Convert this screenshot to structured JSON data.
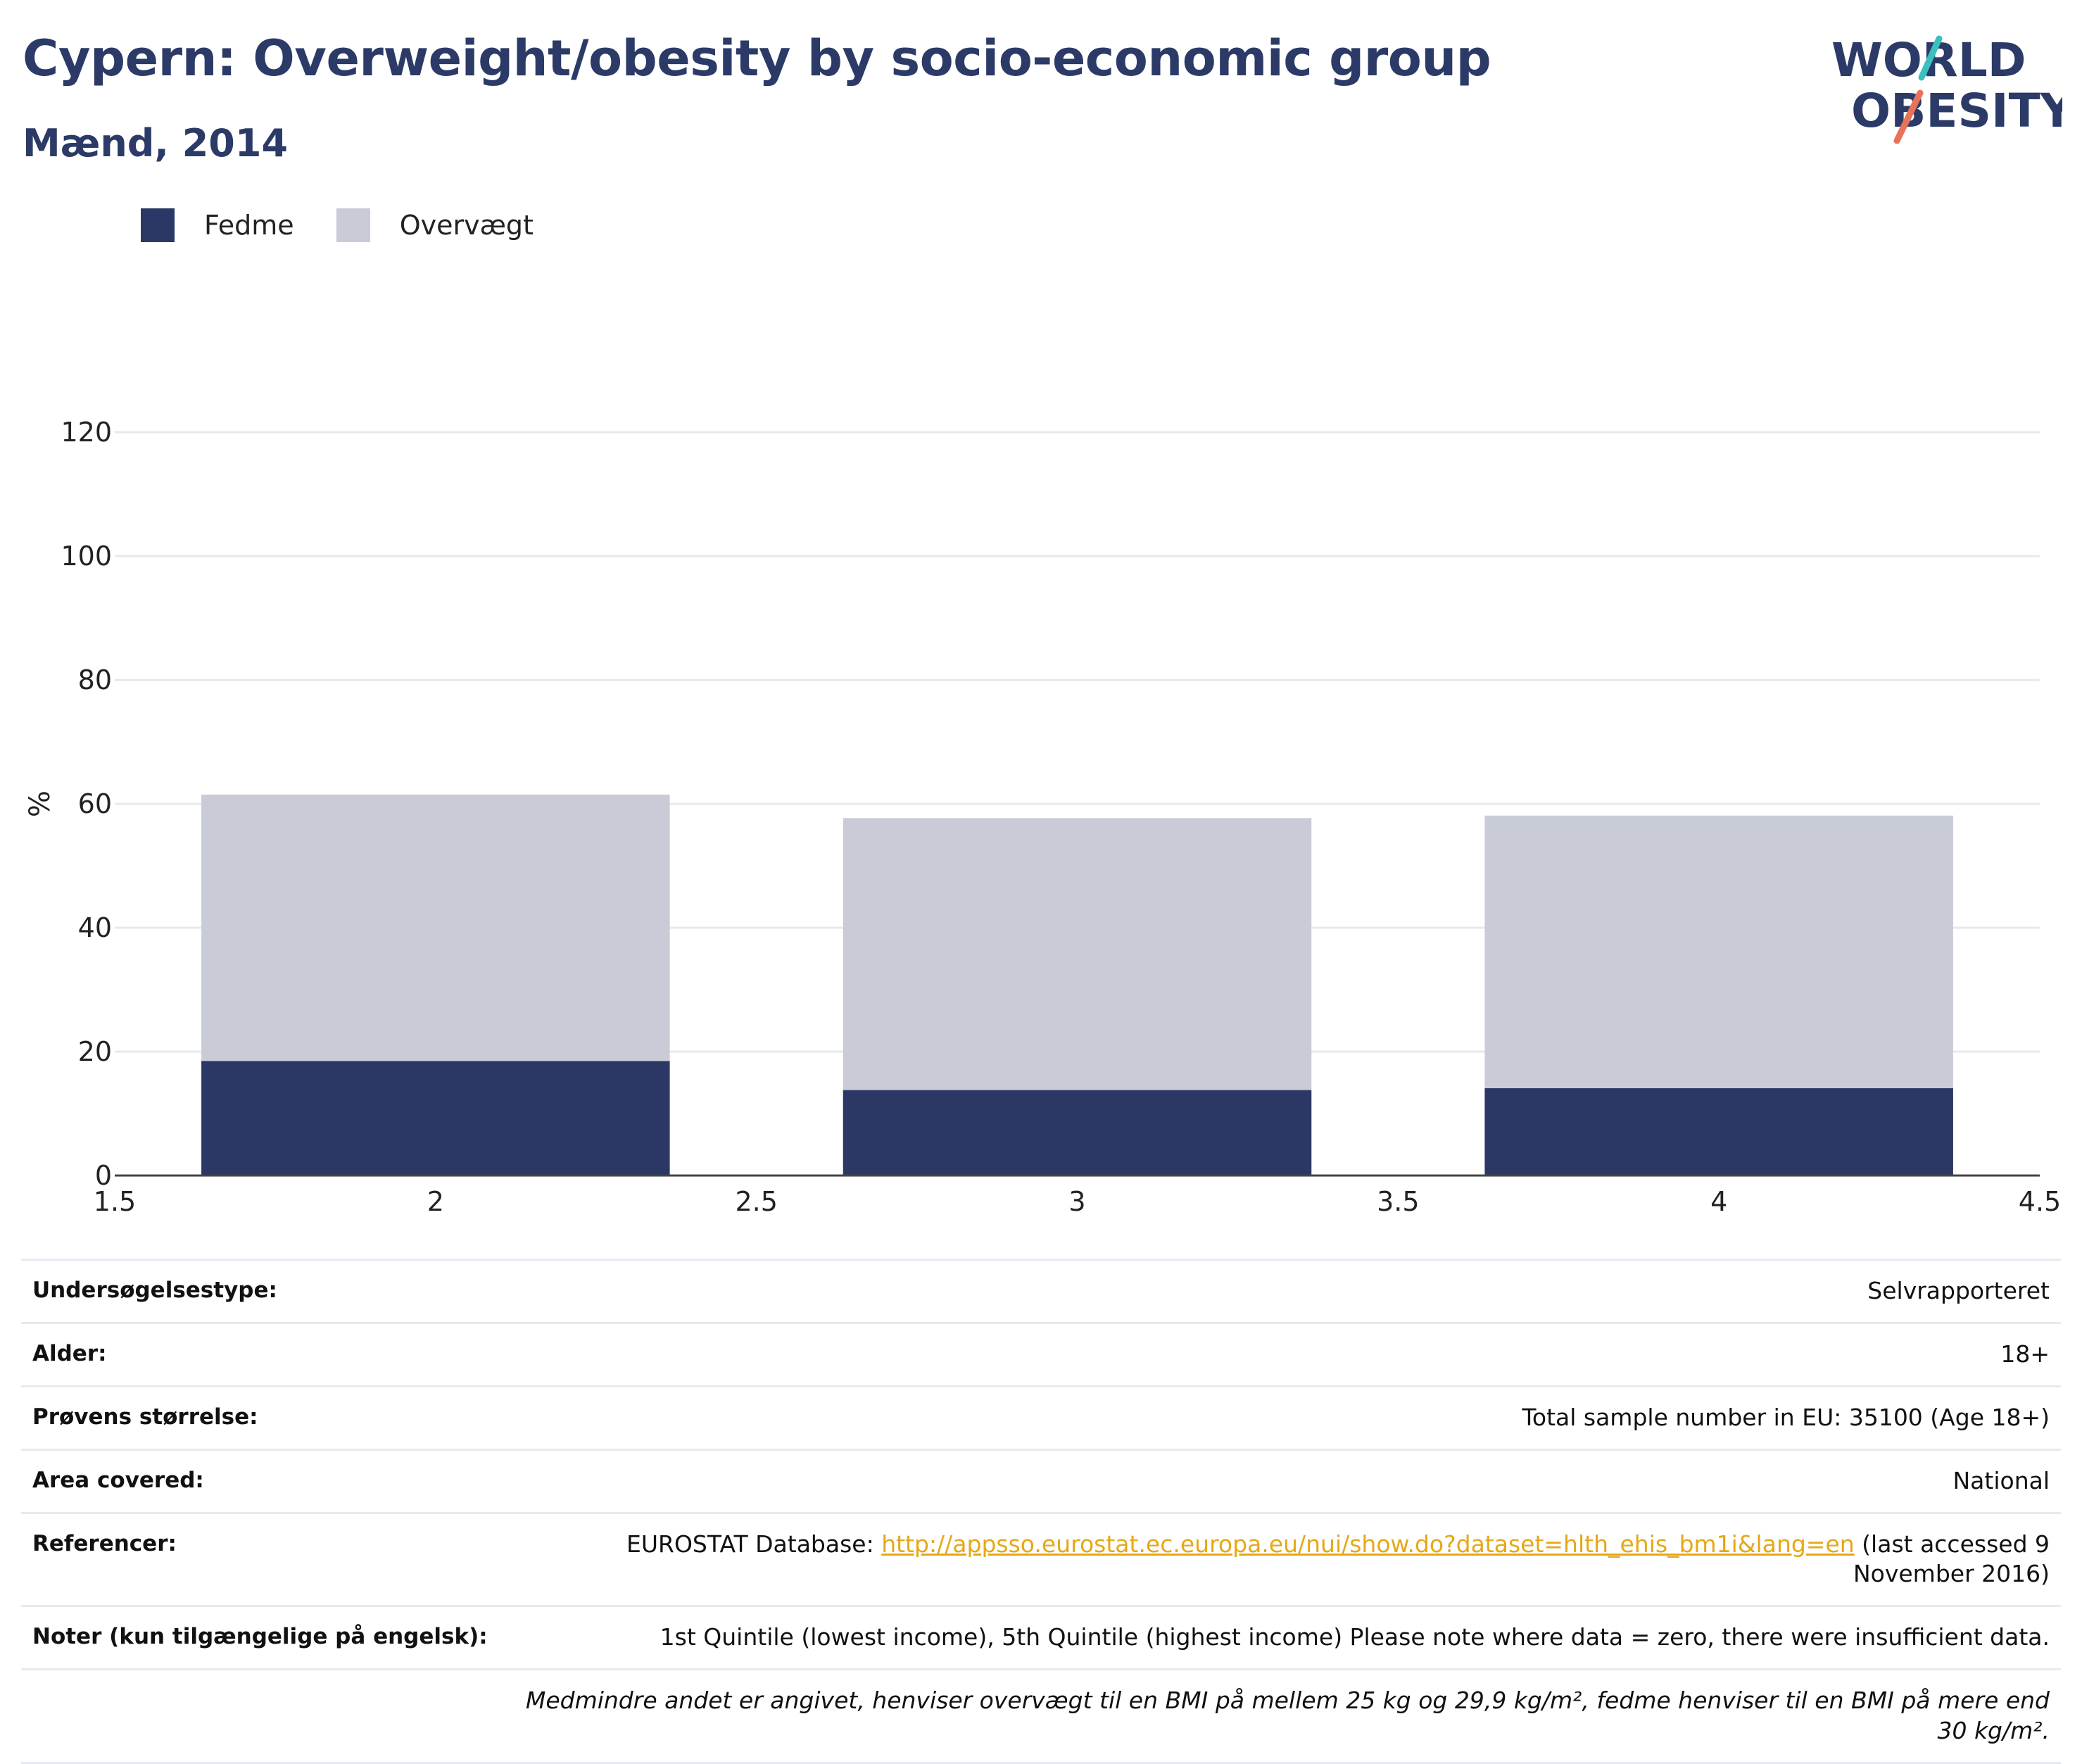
{
  "header": {
    "title": "Cypern: Overweight/obesity by socio-economic group",
    "subtitle": "Mænd, 2014"
  },
  "logo": {
    "line1": "WORLD",
    "line2": "OBESITY",
    "colors": {
      "text": "#2b3a67",
      "slash_top": "#3bbfbf",
      "slash_bottom": "#e8735a"
    }
  },
  "legend": [
    {
      "label": "Fedme",
      "color": "#2b3764"
    },
    {
      "label": "Overvægt",
      "color": "#c9ccd6"
    }
  ],
  "chart_data": {
    "type": "bar",
    "stacked": true,
    "x": [
      2,
      3,
      4
    ],
    "series": [
      {
        "name": "Fedme",
        "color": "#2b3764",
        "values": [
          18.5,
          13.8,
          14.1
        ]
      },
      {
        "name": "Overvægt",
        "color": "#c9ccd6",
        "values": [
          43.0,
          43.9,
          44.0
        ]
      }
    ],
    "xlim": [
      1.5,
      4.5
    ],
    "xticks": [
      "1.5",
      "2",
      "2.5",
      "3",
      "3.5",
      "4",
      "4.5"
    ],
    "ylim": [
      0,
      120
    ],
    "yticks": [
      "0",
      "20",
      "40",
      "60",
      "80",
      "100",
      "120"
    ],
    "ylabel": "%",
    "grid": true,
    "legend_position": "top-left"
  },
  "info": [
    {
      "key": "Undersøgelsestype:",
      "value": "Selvrapporteret"
    },
    {
      "key": "Alder:",
      "value": "18+"
    },
    {
      "key": "Prøvens størrelse:",
      "value": "Total sample number in EU: 35100 (Age 18+)"
    },
    {
      "key": "Area covered:",
      "value": "National"
    },
    {
      "key": "Referencer:",
      "value_prefix": "EUROSTAT Database: ",
      "link": "http://appsso.eurostat.ec.europa.eu/nui/show.do?dataset=hlth_ehis_bm1i&lang=en",
      "value_suffix": " (last accessed 9 November 2016)"
    },
    {
      "key": "Noter (kun tilgængelige på engelsk):",
      "value": "1st Quintile (lowest income), 5th Quintile (highest income) Please note where data = zero, there were insufficient data."
    }
  ],
  "footnote": "Medmindre andet er angivet, henviser overvægt til en BMI på mellem 25 kg og 29,9 kg/m², fedme henviser til en BMI på mere end 30 kg/m²."
}
